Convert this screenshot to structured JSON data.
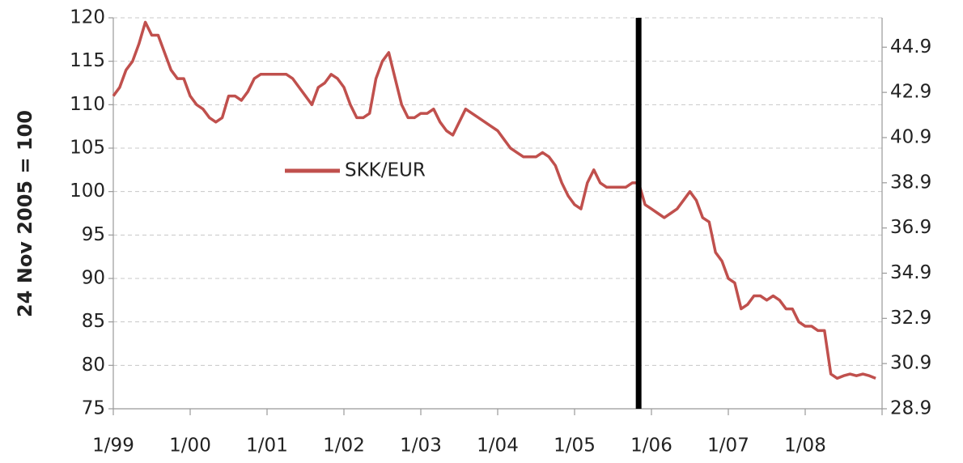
{
  "chart_data": {
    "type": "line",
    "y_label": "24 Nov 2005 = 100",
    "x": [
      "1999-01",
      "1999-02",
      "1999-03",
      "1999-04",
      "1999-05",
      "1999-06",
      "1999-07",
      "1999-08",
      "1999-09",
      "1999-10",
      "1999-11",
      "1999-12",
      "2000-01",
      "2000-02",
      "2000-03",
      "2000-04",
      "2000-05",
      "2000-06",
      "2000-07",
      "2000-08",
      "2000-09",
      "2000-10",
      "2000-11",
      "2000-12",
      "2001-01",
      "2001-02",
      "2001-03",
      "2001-04",
      "2001-05",
      "2001-06",
      "2001-07",
      "2001-08",
      "2001-09",
      "2001-10",
      "2001-11",
      "2001-12",
      "2002-01",
      "2002-02",
      "2002-03",
      "2002-04",
      "2002-05",
      "2002-06",
      "2002-07",
      "2002-08",
      "2002-09",
      "2002-10",
      "2002-11",
      "2002-12",
      "2003-01",
      "2003-02",
      "2003-03",
      "2003-04",
      "2003-05",
      "2003-06",
      "2003-07",
      "2003-08",
      "2003-09",
      "2003-10",
      "2003-11",
      "2003-12",
      "2004-01",
      "2004-02",
      "2004-03",
      "2004-04",
      "2004-05",
      "2004-06",
      "2004-07",
      "2004-08",
      "2004-09",
      "2004-10",
      "2004-11",
      "2004-12",
      "2005-01",
      "2005-02",
      "2005-03",
      "2005-04",
      "2005-05",
      "2005-06",
      "2005-07",
      "2005-08",
      "2005-09",
      "2005-10",
      "2005-11",
      "2005-12",
      "2006-01",
      "2006-02",
      "2006-03",
      "2006-04",
      "2006-05",
      "2006-06",
      "2006-07",
      "2006-08",
      "2006-09",
      "2006-10",
      "2006-11",
      "2006-12",
      "2007-01",
      "2007-02",
      "2007-03",
      "2007-04",
      "2007-05",
      "2007-06",
      "2007-07",
      "2007-08",
      "2007-09",
      "2007-10",
      "2007-11",
      "2007-12",
      "2008-01",
      "2008-02",
      "2008-03",
      "2008-04",
      "2008-05",
      "2008-06",
      "2008-07",
      "2008-08",
      "2008-09",
      "2008-10",
      "2008-11",
      "2008-12"
    ],
    "series": [
      {
        "name": "SKK/EUR",
        "color": "#c0504d",
        "values": [
          111,
          112,
          114,
          115,
          117,
          119.5,
          118,
          118,
          116,
          114,
          113,
          113,
          111,
          110,
          109.5,
          108.5,
          108,
          108.5,
          111,
          111,
          110.5,
          111.5,
          113,
          113.5,
          113.5,
          113.5,
          113.5,
          113.5,
          113,
          112,
          111,
          110,
          112,
          112.5,
          113.5,
          113,
          112,
          110,
          108.5,
          108.5,
          109,
          113,
          115,
          116,
          113,
          110,
          108.5,
          108.5,
          109,
          109,
          109.5,
          108,
          107,
          106.5,
          108,
          109.5,
          109,
          108.5,
          108,
          107.5,
          107,
          106,
          105,
          104.5,
          104,
          104,
          104,
          104.5,
          104,
          103,
          101,
          99.5,
          98.5,
          98,
          101,
          102.5,
          101,
          100.5,
          100.5,
          100.5,
          100.5,
          101,
          101,
          98.5,
          98,
          97.5,
          97,
          97.5,
          98,
          99,
          100,
          99,
          97,
          96.5,
          93,
          92,
          90,
          89.5,
          86.5,
          87,
          88,
          88,
          87.5,
          88,
          87.5,
          86.5,
          86.5,
          85,
          84.5,
          84.5,
          84,
          84,
          79,
          78.5,
          78.8,
          79,
          78.8,
          79,
          78.8,
          78.5
        ]
      }
    ],
    "marker_x": "2005-11",
    "xlim": [
      "1999-01",
      "2009-01"
    ],
    "xticks": [
      {
        "value": "1999-01",
        "label": "1/99"
      },
      {
        "value": "2000-01",
        "label": "1/00"
      },
      {
        "value": "2001-01",
        "label": "1/01"
      },
      {
        "value": "2002-01",
        "label": "1/02"
      },
      {
        "value": "2003-01",
        "label": "1/03"
      },
      {
        "value": "2004-01",
        "label": "1/04"
      },
      {
        "value": "2005-01",
        "label": "1/05"
      },
      {
        "value": "2006-01",
        "label": "1/06"
      },
      {
        "value": "2007-01",
        "label": "1/07"
      },
      {
        "value": "2008-01",
        "label": "1/08"
      }
    ],
    "ylim": [
      75,
      120
    ],
    "yticks": [
      75,
      80,
      85,
      90,
      95,
      100,
      105,
      110,
      115,
      120
    ],
    "y2lim": [
      28.9,
      46.2
    ],
    "y2ticks": [
      28.9,
      30.9,
      32.9,
      34.9,
      36.9,
      38.9,
      40.9,
      42.9,
      44.9
    ],
    "grid": true
  }
}
